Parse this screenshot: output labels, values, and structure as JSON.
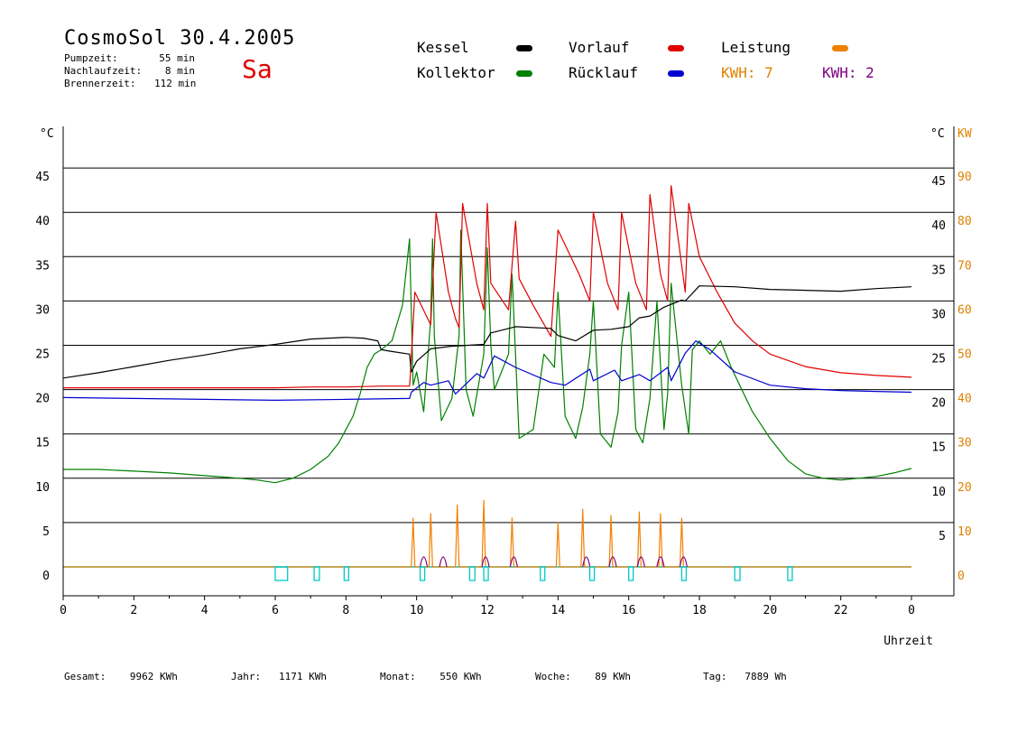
{
  "header": {
    "title": "CosmoSol 30.4.2005",
    "day_label": "Sa",
    "info": [
      {
        "label": "Pumpzeit:",
        "value": "55 min"
      },
      {
        "label": "Nachlaufzeit:",
        "value": "8 min"
      },
      {
        "label": "Brennerzeit:",
        "value": "112 min"
      }
    ]
  },
  "legend": {
    "kessel": {
      "label": "Kessel",
      "color": "#000000"
    },
    "vorlauf": {
      "label": "Vorlauf",
      "color": "#e00000"
    },
    "leistung": {
      "label": "Leistung",
      "color": "#f08000"
    },
    "kollektor": {
      "label": "Kollektor",
      "color": "#008000"
    },
    "ruecklauf": {
      "label": "Rücklauf",
      "color": "#0000d0"
    },
    "kwh1": {
      "label": "KWH:",
      "value": "7",
      "color": "#e08000"
    },
    "kwh2": {
      "label": "KWH:",
      "value": "2",
      "color": "#800080"
    }
  },
  "footer": [
    {
      "label": "Gesamt:",
      "value": "9962 KWh"
    },
    {
      "label": "Jahr:",
      "value": "1171 KWh"
    },
    {
      "label": "Monat:",
      "value": "550 KWh"
    },
    {
      "label": "Woche:",
      "value": "89 KWh"
    },
    {
      "label": "Tag:",
      "value": "7889 Wh"
    }
  ],
  "chart_data": {
    "type": "line",
    "xlabel": "Uhrzeit",
    "ylabel_left": "°C",
    "ylabel_right_temp": "°C",
    "ylabel_right_power": "KW",
    "xlim": [
      0,
      24
    ],
    "ylim": [
      -3.3,
      50
    ],
    "grid": true,
    "x_ticks": [
      "0",
      "2",
      "4",
      "6",
      "8",
      "10",
      "12",
      "14",
      "16",
      "18",
      "20",
      "22",
      "0"
    ],
    "y_ticks_left": [
      "0",
      "5",
      "10",
      "15",
      "20",
      "25",
      "30",
      "35",
      "40",
      "45"
    ],
    "y_ticks_right_temp": [
      "5",
      "10",
      "15",
      "20",
      "25",
      "30",
      "35",
      "40",
      "45"
    ],
    "y_ticks_right_power": [
      "0",
      "10",
      "20",
      "30",
      "40",
      "50",
      "60",
      "70",
      "80",
      "90"
    ],
    "series": [
      {
        "name": "Kessel",
        "color": "#000000",
        "x": [
          0,
          1,
          2,
          3,
          4,
          5,
          6,
          7,
          8,
          8.5,
          8.9,
          9.0,
          9.3,
          9.8,
          9.85,
          10.0,
          10.4,
          11.0,
          11.9,
          12.1,
          12.8,
          13.8,
          14.0,
          14.5,
          15.0,
          15.5,
          16.0,
          16.3,
          16.6,
          17.0,
          17.5,
          17.6,
          18.0,
          19.0,
          20.0,
          21.0,
          22.0,
          23.0,
          24.0
        ],
        "y": [
          21.3,
          21.9,
          22.6,
          23.3,
          23.9,
          24.6,
          25.1,
          25.7,
          25.9,
          25.8,
          25.5,
          24.5,
          24.3,
          24.0,
          22.0,
          23.2,
          24.6,
          24.9,
          25.1,
          26.4,
          27.1,
          26.9,
          26.1,
          25.5,
          26.7,
          26.8,
          27.1,
          28.1,
          28.3,
          29.3,
          30.1,
          30.0,
          31.7,
          31.6,
          31.3,
          31.2,
          31.1,
          31.4,
          31.6
        ]
      },
      {
        "name": "Vorlauf",
        "color": "#e00000",
        "x": [
          0,
          3,
          6,
          7,
          8,
          9,
          9.8,
          9.82,
          9.95,
          10.4,
          10.55,
          10.9,
          11.1,
          11.2,
          11.3,
          11.7,
          11.9,
          12.0,
          12.1,
          12.6,
          12.8,
          12.9,
          13.3,
          13.8,
          14.0,
          14.6,
          14.9,
          15.0,
          15.4,
          15.7,
          15.8,
          16.2,
          16.5,
          16.6,
          16.9,
          17.1,
          17.2,
          17.5,
          17.6,
          17.7,
          18.0,
          18.5,
          19.0,
          19.5,
          20.0,
          21.0,
          22.0,
          23.0,
          24.0
        ],
        "y": [
          20.2,
          20.2,
          20.2,
          20.3,
          20.3,
          20.4,
          20.4,
          21.4,
          31.0,
          27.3,
          40.0,
          31.0,
          28.0,
          27.0,
          41.0,
          32.0,
          29.0,
          41.0,
          32.0,
          29.0,
          39.0,
          32.5,
          29.5,
          26.0,
          38.0,
          33.0,
          30.0,
          40.0,
          32.0,
          29.0,
          40.0,
          32.0,
          29.0,
          42.0,
          33.0,
          30.0,
          43.0,
          34.0,
          31.0,
          41.0,
          35.0,
          31.0,
          27.5,
          25.5,
          24.0,
          22.6,
          21.9,
          21.6,
          21.4
        ]
      },
      {
        "name": "Rücklauf",
        "color": "#0000d0",
        "x": [
          0,
          2,
          4,
          6,
          8,
          9.8,
          9.85,
          10.2,
          10.4,
          10.9,
          11.1,
          11.7,
          11.9,
          12.2,
          12.8,
          13.8,
          14.2,
          14.9,
          15.0,
          15.6,
          15.8,
          16.3,
          16.6,
          17.1,
          17.2,
          17.6,
          17.9,
          18.3,
          19.0,
          20.0,
          21.0,
          22.0,
          23.0,
          24.0
        ],
        "y": [
          19.1,
          19.0,
          18.9,
          18.8,
          18.9,
          19.0,
          19.7,
          20.8,
          20.5,
          21.0,
          19.5,
          21.8,
          21.3,
          23.8,
          22.5,
          20.8,
          20.5,
          22.3,
          21.0,
          22.2,
          21.0,
          21.7,
          21.0,
          22.5,
          21.0,
          24.1,
          25.5,
          24.5,
          22.0,
          20.5,
          20.1,
          19.9,
          19.8,
          19.7
        ]
      },
      {
        "name": "Kollektor",
        "color": "#008000",
        "x": [
          0,
          1,
          2,
          3,
          4,
          5,
          5.5,
          6.0,
          6.5,
          7.0,
          7.5,
          7.8,
          8.0,
          8.2,
          8.4,
          8.6,
          8.8,
          9.0,
          9.3,
          9.6,
          9.8,
          9.9,
          10.0,
          10.2,
          10.4,
          10.45,
          10.5,
          10.7,
          11.0,
          11.2,
          11.25,
          11.4,
          11.6,
          11.9,
          12.0,
          12.1,
          12.2,
          12.4,
          12.6,
          12.7,
          12.9,
          13.3,
          13.6,
          13.9,
          14.0,
          14.2,
          14.5,
          14.7,
          14.9,
          15.0,
          15.2,
          15.5,
          15.7,
          15.8,
          16.0,
          16.2,
          16.4,
          16.6,
          16.8,
          17.0,
          17.1,
          17.2,
          17.5,
          17.7,
          17.8,
          18.0,
          18.3,
          18.6,
          18.9,
          19.2,
          19.5,
          20.0,
          20.5,
          21.0,
          21.5,
          22.0,
          22.5,
          23.0,
          23.5,
          24.0
        ],
        "y": [
          11.0,
          11.0,
          10.8,
          10.6,
          10.3,
          10.0,
          9.8,
          9.5,
          10.0,
          11.0,
          12.5,
          14.0,
          15.5,
          17.0,
          19.5,
          22.5,
          24.0,
          24.5,
          25.5,
          29.5,
          37.0,
          20.5,
          22.0,
          17.5,
          28.0,
          37.0,
          26.0,
          16.5,
          19.0,
          26.0,
          38.0,
          20.0,
          17.0,
          24.0,
          36.0,
          25.0,
          20.0,
          22.0,
          24.0,
          33.0,
          14.5,
          15.5,
          24.0,
          22.5,
          31.0,
          17.0,
          14.5,
          18.0,
          24.0,
          30.0,
          15.0,
          13.5,
          17.5,
          25.0,
          31.0,
          15.5,
          14.0,
          19.0,
          30.0,
          15.5,
          19.5,
          32.0,
          20.5,
          15.0,
          24.5,
          25.5,
          24.0,
          25.5,
          22.5,
          20.0,
          17.5,
          14.5,
          12.0,
          10.5,
          10.0,
          9.8,
          10.0,
          10.2,
          10.6,
          11.1
        ]
      },
      {
        "name": "Leistung",
        "color": "#f08000",
        "x": [
          0,
          9.8,
          9.85,
          9.9,
          9.95,
          10.3,
          10.35,
          10.4,
          10.45,
          11.05,
          11.1,
          11.15,
          11.2,
          11.8,
          11.85,
          11.9,
          11.95,
          12.6,
          12.65,
          12.7,
          12.75,
          13.9,
          13.95,
          14.0,
          14.05,
          14.6,
          14.65,
          14.7,
          14.75,
          15.4,
          15.45,
          15.5,
          15.55,
          16.2,
          16.25,
          16.3,
          16.35,
          16.8,
          16.85,
          16.9,
          16.95,
          17.4,
          17.45,
          17.5,
          17.55,
          24.0
        ],
        "y": [
          0,
          0,
          0,
          5.5,
          0,
          0,
          0,
          6.0,
          0,
          0,
          0,
          7.0,
          0,
          0,
          0,
          7.5,
          0,
          0,
          0,
          5.5,
          0,
          0,
          0,
          5.0,
          0,
          0,
          0,
          6.5,
          0,
          0,
          0,
          5.8,
          0,
          0,
          0,
          6.2,
          0,
          0,
          0,
          6.0,
          0,
          0,
          0,
          5.5,
          0,
          0
        ]
      }
    ]
  }
}
